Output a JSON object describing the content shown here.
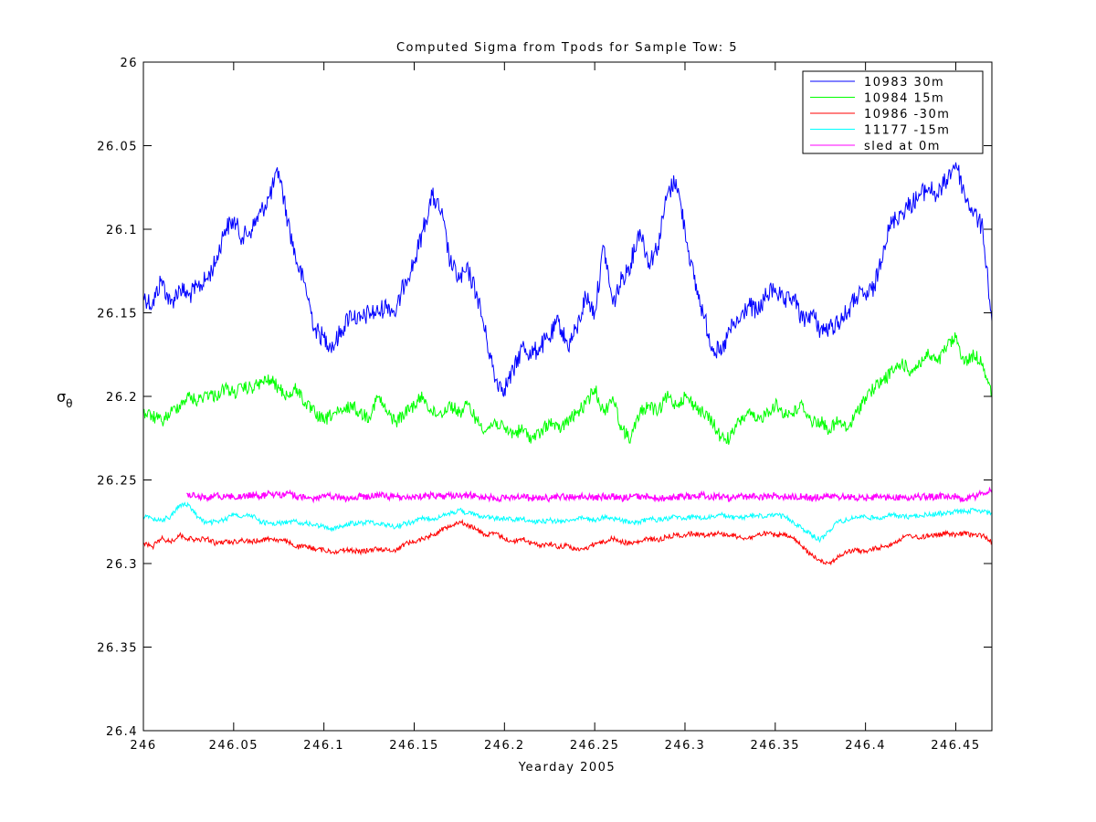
{
  "chart_data": {
    "type": "line",
    "title": "Computed Sigma from Tpods for Sample Tow: 5",
    "xlabel": "Yearday 2005",
    "ylabel": "σ",
    "ylabel_subscript": "θ",
    "xlim": [
      246,
      246.47
    ],
    "ylim": [
      26.0,
      26.4
    ],
    "y_reversed": true,
    "grid": false,
    "legend_position": "top-right",
    "x_ticks": [
      "246",
      "246.05",
      "246.1",
      "246.15",
      "246.2",
      "246.25",
      "246.3",
      "246.35",
      "246.4",
      "246.45"
    ],
    "x_tick_values": [
      246,
      246.05,
      246.1,
      246.15,
      246.2,
      246.25,
      246.3,
      246.35,
      246.4,
      246.45
    ],
    "y_ticks": [
      "26",
      "26.05",
      "26.1",
      "26.15",
      "26.2",
      "26.25",
      "26.3",
      "26.35",
      "26.4"
    ],
    "y_tick_values": [
      26.0,
      26.05,
      26.1,
      26.15,
      26.2,
      26.25,
      26.3,
      26.35,
      26.4
    ],
    "series": [
      {
        "name": "10983 30m",
        "color": "#0000ff",
        "x": [
          246.0,
          246.005,
          246.01,
          246.015,
          246.02,
          246.025,
          246.03,
          246.035,
          246.04,
          246.045,
          246.05,
          246.055,
          246.06,
          246.065,
          246.07,
          246.075,
          246.08,
          246.085,
          246.09,
          246.095,
          246.1,
          246.105,
          246.11,
          246.115,
          246.12,
          246.125,
          246.13,
          246.135,
          246.14,
          246.145,
          246.15,
          246.155,
          246.16,
          246.165,
          246.17,
          246.175,
          246.18,
          246.185,
          246.19,
          246.195,
          246.2,
          246.205,
          246.21,
          246.215,
          246.22,
          246.225,
          246.23,
          246.235,
          246.24,
          246.245,
          246.25,
          246.255,
          246.26,
          246.265,
          246.27,
          246.275,
          246.28,
          246.285,
          246.29,
          246.295,
          246.3,
          246.305,
          246.31,
          246.315,
          246.32,
          246.325,
          246.33,
          246.335,
          246.34,
          246.345,
          246.35,
          246.355,
          246.36,
          246.365,
          246.37,
          246.375,
          246.38,
          246.385,
          246.39,
          246.395,
          246.4,
          246.405,
          246.41,
          246.415,
          246.42,
          246.425,
          246.43,
          246.435,
          246.44,
          246.445,
          246.45,
          246.455,
          246.46,
          246.465,
          246.47
        ],
        "y": [
          26.14,
          26.145,
          26.13,
          26.145,
          26.135,
          26.14,
          26.135,
          26.13,
          26.12,
          26.1,
          26.095,
          26.105,
          26.1,
          26.09,
          26.08,
          26.065,
          26.095,
          26.12,
          26.135,
          26.16,
          26.165,
          26.17,
          26.16,
          26.15,
          26.155,
          26.15,
          26.15,
          26.145,
          26.15,
          26.13,
          26.12,
          26.1,
          26.08,
          26.09,
          26.12,
          26.13,
          26.125,
          26.14,
          26.165,
          26.19,
          26.195,
          26.185,
          26.17,
          26.175,
          26.17,
          26.165,
          26.155,
          26.17,
          26.16,
          26.14,
          26.15,
          26.11,
          26.145,
          26.13,
          26.12,
          26.1,
          26.12,
          26.11,
          26.08,
          26.07,
          26.1,
          26.13,
          26.15,
          26.17,
          26.175,
          26.16,
          26.155,
          26.145,
          26.15,
          26.14,
          26.135,
          26.145,
          26.14,
          26.155,
          26.15,
          26.16,
          26.16,
          26.155,
          26.15,
          26.14,
          26.14,
          26.135,
          26.11,
          26.095,
          26.09,
          26.085,
          26.08,
          26.075,
          26.08,
          26.07,
          26.06,
          26.08,
          26.09,
          26.1,
          26.155
        ]
      },
      {
        "name": "10984 15m",
        "color": "#00ff00",
        "x": [
          246.0,
          246.005,
          246.01,
          246.015,
          246.02,
          246.025,
          246.03,
          246.035,
          246.04,
          246.045,
          246.05,
          246.055,
          246.06,
          246.065,
          246.07,
          246.075,
          246.08,
          246.085,
          246.09,
          246.095,
          246.1,
          246.105,
          246.11,
          246.115,
          246.12,
          246.125,
          246.13,
          246.135,
          246.14,
          246.145,
          246.15,
          246.155,
          246.16,
          246.165,
          246.17,
          246.175,
          246.18,
          246.185,
          246.19,
          246.195,
          246.2,
          246.205,
          246.21,
          246.215,
          246.22,
          246.225,
          246.23,
          246.235,
          246.24,
          246.245,
          246.25,
          246.255,
          246.26,
          246.265,
          246.27,
          246.275,
          246.28,
          246.285,
          246.29,
          246.295,
          246.3,
          246.305,
          246.31,
          246.315,
          246.32,
          246.325,
          246.33,
          246.335,
          246.34,
          246.345,
          246.35,
          246.355,
          246.36,
          246.365,
          246.37,
          246.375,
          246.38,
          246.385,
          246.39,
          246.395,
          246.4,
          246.405,
          246.41,
          246.415,
          246.42,
          246.425,
          246.43,
          246.435,
          246.44,
          246.445,
          246.45,
          246.455,
          246.46,
          246.465,
          246.47
        ],
        "y": [
          26.21,
          26.212,
          26.215,
          26.21,
          26.205,
          26.2,
          26.203,
          26.198,
          26.2,
          26.195,
          26.198,
          26.195,
          26.195,
          26.192,
          26.19,
          26.195,
          26.2,
          26.195,
          26.205,
          26.21,
          26.215,
          26.21,
          26.21,
          26.205,
          26.21,
          26.212,
          26.2,
          26.21,
          26.215,
          26.21,
          26.205,
          26.2,
          26.21,
          26.21,
          26.205,
          26.21,
          26.205,
          26.215,
          26.22,
          26.215,
          26.22,
          26.222,
          26.22,
          26.225,
          26.222,
          26.215,
          26.22,
          26.215,
          26.21,
          26.205,
          26.195,
          26.21,
          26.2,
          26.22,
          26.225,
          26.21,
          26.205,
          26.21,
          26.2,
          26.205,
          26.2,
          26.205,
          26.21,
          26.215,
          26.225,
          26.225,
          26.215,
          26.21,
          26.215,
          26.21,
          26.205,
          26.21,
          26.21,
          26.205,
          26.215,
          26.215,
          26.22,
          26.215,
          26.22,
          26.21,
          26.2,
          26.195,
          26.19,
          26.185,
          26.18,
          26.185,
          26.18,
          26.175,
          26.18,
          26.17,
          26.165,
          26.18,
          26.175,
          26.18,
          26.2
        ]
      },
      {
        "name": "10986 -30m",
        "color": "#ff0000",
        "x": [
          246.0,
          246.005,
          246.01,
          246.015,
          246.02,
          246.025,
          246.03,
          246.035,
          246.04,
          246.045,
          246.05,
          246.055,
          246.06,
          246.065,
          246.07,
          246.075,
          246.08,
          246.085,
          246.09,
          246.095,
          246.1,
          246.105,
          246.11,
          246.115,
          246.12,
          246.125,
          246.13,
          246.135,
          246.14,
          246.145,
          246.15,
          246.155,
          246.16,
          246.165,
          246.17,
          246.175,
          246.18,
          246.185,
          246.19,
          246.195,
          246.2,
          246.205,
          246.21,
          246.215,
          246.22,
          246.225,
          246.23,
          246.235,
          246.24,
          246.245,
          246.25,
          246.255,
          246.26,
          246.265,
          246.27,
          246.275,
          246.28,
          246.285,
          246.29,
          246.295,
          246.3,
          246.305,
          246.31,
          246.315,
          246.32,
          246.325,
          246.33,
          246.335,
          246.34,
          246.345,
          246.35,
          246.355,
          246.36,
          246.365,
          246.37,
          246.375,
          246.38,
          246.385,
          246.39,
          246.395,
          246.4,
          246.405,
          246.41,
          246.415,
          246.42,
          246.425,
          246.43,
          246.435,
          246.44,
          246.445,
          246.45,
          246.455,
          246.46,
          246.465,
          246.47
        ],
        "y": [
          26.288,
          26.29,
          26.285,
          26.287,
          26.283,
          26.285,
          26.286,
          26.285,
          26.288,
          26.287,
          26.287,
          26.286,
          26.287,
          26.286,
          26.285,
          26.286,
          26.287,
          26.29,
          26.29,
          26.291,
          26.292,
          26.293,
          26.292,
          26.292,
          26.293,
          26.292,
          26.291,
          26.292,
          26.292,
          26.288,
          26.287,
          26.285,
          26.283,
          26.28,
          26.277,
          26.275,
          26.277,
          26.28,
          26.283,
          26.282,
          26.285,
          26.287,
          26.285,
          26.288,
          26.289,
          26.288,
          26.29,
          26.289,
          26.292,
          26.291,
          26.288,
          26.287,
          26.285,
          26.287,
          26.288,
          26.287,
          26.285,
          26.286,
          26.284,
          26.283,
          26.283,
          26.282,
          26.283,
          26.282,
          26.282,
          26.283,
          26.284,
          26.285,
          26.283,
          26.282,
          26.283,
          26.283,
          26.285,
          26.29,
          26.295,
          26.298,
          26.3,
          26.296,
          26.293,
          26.292,
          26.293,
          26.291,
          26.29,
          26.288,
          26.285,
          26.283,
          26.285,
          26.283,
          26.283,
          26.282,
          26.283,
          26.282,
          26.283,
          26.283,
          26.287
        ]
      },
      {
        "name": "11177 -15m",
        "color": "#00ffff",
        "x": [
          246.0,
          246.005,
          246.01,
          246.015,
          246.02,
          246.025,
          246.03,
          246.035,
          246.04,
          246.045,
          246.05,
          246.055,
          246.06,
          246.065,
          246.07,
          246.075,
          246.08,
          246.085,
          246.09,
          246.095,
          246.1,
          246.105,
          246.11,
          246.115,
          246.12,
          246.125,
          246.13,
          246.135,
          246.14,
          246.145,
          246.15,
          246.155,
          246.16,
          246.165,
          246.17,
          246.175,
          246.18,
          246.185,
          246.19,
          246.195,
          246.2,
          246.205,
          246.21,
          246.215,
          246.22,
          246.225,
          246.23,
          246.235,
          246.24,
          246.245,
          246.25,
          246.255,
          246.26,
          246.265,
          246.27,
          246.275,
          246.28,
          246.285,
          246.29,
          246.295,
          246.3,
          246.305,
          246.31,
          246.315,
          246.32,
          246.325,
          246.33,
          246.335,
          246.34,
          246.345,
          246.35,
          246.355,
          246.36,
          246.365,
          246.37,
          246.375,
          246.38,
          246.385,
          246.39,
          246.395,
          246.4,
          246.405,
          246.41,
          246.415,
          246.42,
          246.425,
          246.43,
          246.435,
          246.44,
          246.445,
          246.45,
          246.455,
          246.46,
          246.465,
          246.47
        ],
        "y": [
          26.272,
          26.273,
          26.274,
          26.272,
          26.265,
          26.265,
          26.272,
          26.276,
          26.275,
          26.274,
          26.27,
          26.272,
          26.271,
          26.275,
          26.276,
          26.276,
          26.275,
          26.275,
          26.276,
          26.277,
          26.278,
          26.279,
          26.278,
          26.276,
          26.276,
          26.275,
          26.276,
          26.277,
          26.278,
          26.276,
          26.275,
          26.273,
          26.273,
          26.272,
          26.27,
          26.268,
          26.27,
          26.271,
          26.272,
          26.273,
          26.273,
          26.274,
          26.273,
          26.275,
          26.275,
          26.274,
          26.275,
          26.274,
          26.273,
          26.273,
          26.274,
          26.272,
          26.273,
          26.274,
          26.276,
          26.275,
          26.273,
          26.274,
          26.273,
          26.272,
          26.273,
          26.272,
          26.273,
          26.272,
          26.271,
          26.272,
          26.273,
          26.272,
          26.271,
          26.272,
          26.271,
          26.272,
          26.275,
          26.279,
          26.283,
          26.286,
          26.28,
          26.275,
          26.274,
          26.272,
          26.272,
          26.273,
          26.272,
          26.271,
          26.272,
          26.272,
          26.271,
          26.271,
          26.27,
          26.27,
          26.269,
          26.269,
          26.268,
          26.269,
          26.27
        ]
      },
      {
        "name": "sled at 0m",
        "color": "#ff00ff",
        "x": [
          246.024,
          246.03,
          246.035,
          246.04,
          246.045,
          246.05,
          246.055,
          246.06,
          246.065,
          246.07,
          246.075,
          246.08,
          246.085,
          246.09,
          246.095,
          246.1,
          246.105,
          246.11,
          246.115,
          246.12,
          246.125,
          246.13,
          246.135,
          246.14,
          246.145,
          246.15,
          246.155,
          246.16,
          246.165,
          246.17,
          246.175,
          246.18,
          246.185,
          246.19,
          246.195,
          246.2,
          246.205,
          246.21,
          246.215,
          246.22,
          246.225,
          246.23,
          246.235,
          246.24,
          246.245,
          246.25,
          246.255,
          246.26,
          246.265,
          246.27,
          246.275,
          246.28,
          246.285,
          246.29,
          246.295,
          246.3,
          246.305,
          246.31,
          246.315,
          246.32,
          246.325,
          246.33,
          246.335,
          246.34,
          246.345,
          246.35,
          246.355,
          246.36,
          246.365,
          246.37,
          246.375,
          246.38,
          246.385,
          246.39,
          246.395,
          246.4,
          246.405,
          246.41,
          246.415,
          246.42,
          246.425,
          246.43,
          246.435,
          246.44,
          246.445,
          246.45,
          246.455,
          246.46,
          246.465,
          246.47
        ],
        "y": [
          26.258,
          26.26,
          26.261,
          26.259,
          26.26,
          26.26,
          26.26,
          26.259,
          26.26,
          26.258,
          26.259,
          26.258,
          26.26,
          26.261,
          26.261,
          26.26,
          26.26,
          26.261,
          26.261,
          26.26,
          26.26,
          26.259,
          26.26,
          26.26,
          26.261,
          26.26,
          26.26,
          26.259,
          26.26,
          26.259,
          26.26,
          26.259,
          26.26,
          26.26,
          26.261,
          26.261,
          26.26,
          26.26,
          26.261,
          26.26,
          26.261,
          26.26,
          26.26,
          26.26,
          26.26,
          26.261,
          26.26,
          26.26,
          26.261,
          26.26,
          26.26,
          26.26,
          26.261,
          26.261,
          26.26,
          26.26,
          26.26,
          26.259,
          26.26,
          26.26,
          26.261,
          26.26,
          26.26,
          26.26,
          26.26,
          26.259,
          26.26,
          26.26,
          26.26,
          26.261,
          26.26,
          26.26,
          26.26,
          26.26,
          26.261,
          26.261,
          26.26,
          26.26,
          26.261,
          26.26,
          26.261,
          26.26,
          26.26,
          26.26,
          26.26,
          26.26,
          26.262,
          26.26,
          26.258,
          26.256
        ]
      }
    ]
  }
}
